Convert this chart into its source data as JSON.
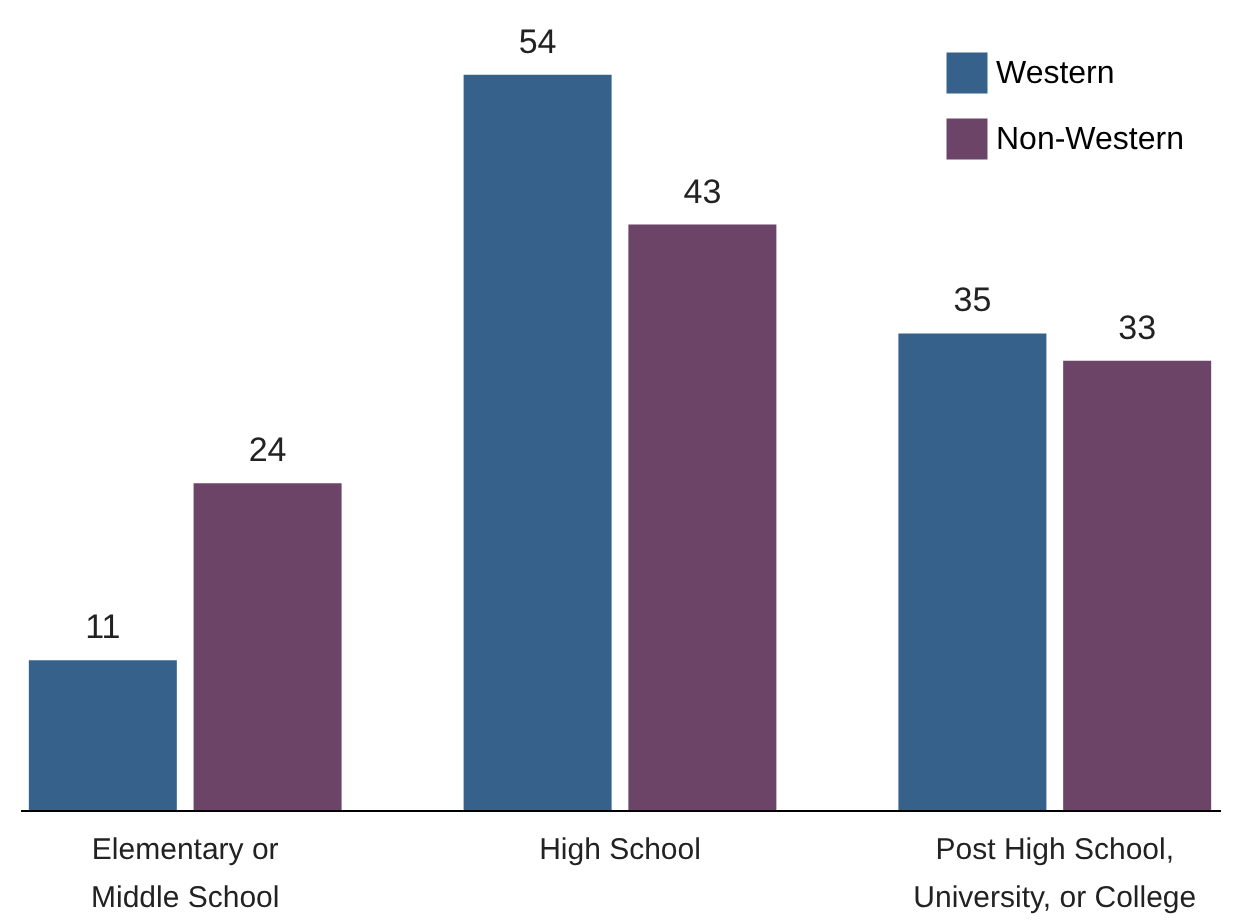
{
  "chart_data": {
    "type": "bar",
    "categories": [
      "Elementary or Middle School",
      "High School",
      "Post High School, University, or College"
    ],
    "series": [
      {
        "name": "Western",
        "color": "#35618a",
        "values": [
          11,
          54,
          35
        ]
      },
      {
        "name": "Non-Western",
        "color": "#6b4468",
        "values": [
          24,
          43,
          33
        ]
      }
    ],
    "data_labels": true,
    "legend": "top right"
  }
}
